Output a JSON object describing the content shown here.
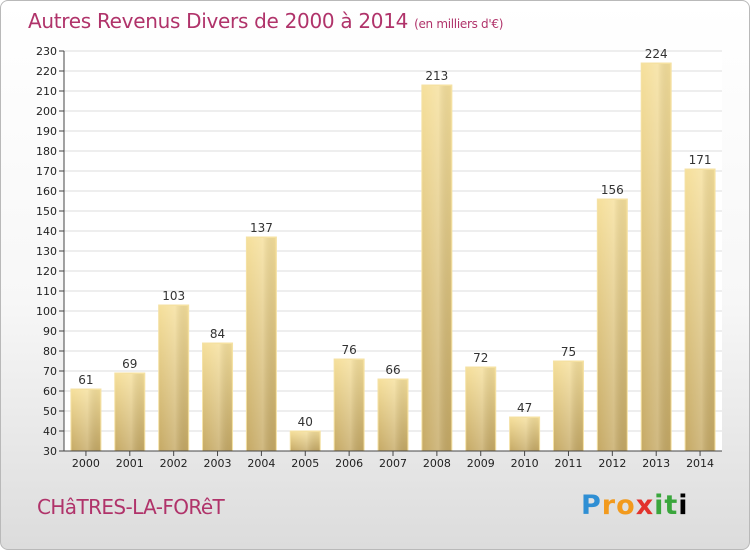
{
  "page": {
    "title": "Autres Revenus Divers de 2000 à 2014",
    "unit": "(en milliers d'€)",
    "commune": "CHâTRES-LA-FORêT",
    "logo_text": "Proxiti"
  },
  "colors": {
    "title": "#b0336a",
    "bar_light": "#f3dc98",
    "bar_dark": "#c5aa66",
    "grid": "#dddddd"
  },
  "chart_data": {
    "type": "bar",
    "title": "Autres Revenus Divers de 2000 à 2014",
    "subtitle": "(en milliers d'€)",
    "categories": [
      "2000",
      "2001",
      "2002",
      "2003",
      "2004",
      "2005",
      "2006",
      "2007",
      "2008",
      "2009",
      "2010",
      "2011",
      "2012",
      "2013",
      "2014"
    ],
    "values": [
      61,
      69,
      103,
      84,
      137,
      40,
      76,
      66,
      213,
      72,
      47,
      75,
      156,
      224,
      171
    ],
    "ylim": [
      30,
      230
    ],
    "ytick_step": 10,
    "grid": true,
    "legend": "none"
  }
}
